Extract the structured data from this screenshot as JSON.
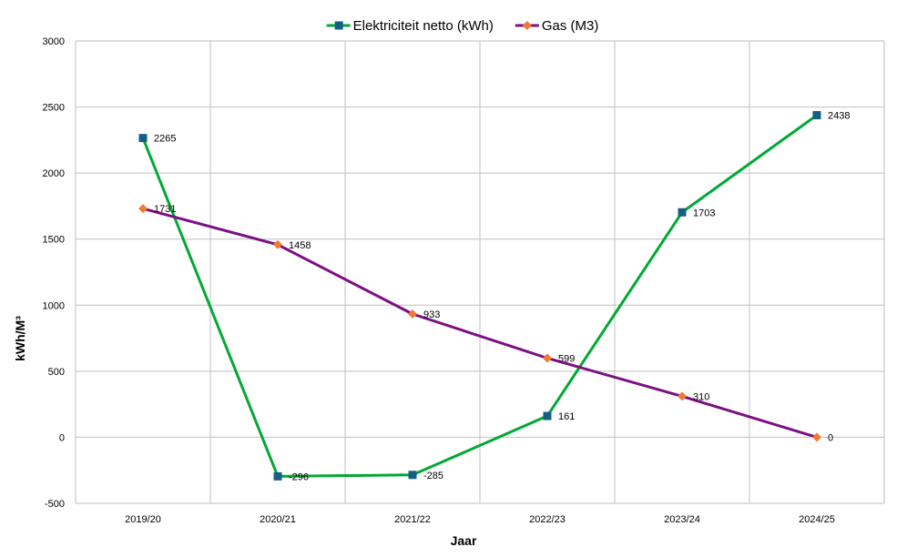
{
  "chart_data": {
    "type": "line",
    "categories": [
      "2019/20",
      "2020/21",
      "2021/22",
      "2022/23",
      "2023/24",
      "2024/25"
    ],
    "series": [
      {
        "name": "Elektriciteit netto (kWh)",
        "values": [
          2265,
          -296,
          -285,
          161,
          1703,
          2438
        ],
        "data_labels": [
          "2265",
          "-296",
          "-285",
          "161",
          "1703",
          "2438"
        ],
        "line_color": "#00A933",
        "marker": "square",
        "marker_color": "#156082"
      },
      {
        "name": "Gas (M3)",
        "values": [
          1731,
          1458,
          933,
          599,
          310,
          0
        ],
        "data_labels": [
          "1731",
          "1458",
          "933",
          "599",
          "310",
          "0"
        ],
        "line_color": "#7B0F84",
        "marker": "diamond",
        "marker_color": "#F07A2E"
      }
    ],
    "title": "",
    "xlabel": "Jaar",
    "ylabel": "kWh/M³",
    "ylim": [
      -500,
      3000
    ],
    "yticks": [
      -500,
      0,
      500,
      1000,
      1500,
      2000,
      2500,
      3000
    ],
    "ytick_labels": [
      "-500",
      "0",
      "500",
      "1000",
      "1500",
      "2000",
      "2500",
      "3000"
    ],
    "grid": true,
    "grid_color": "#BFBFBF",
    "legend_position": "top-center"
  }
}
